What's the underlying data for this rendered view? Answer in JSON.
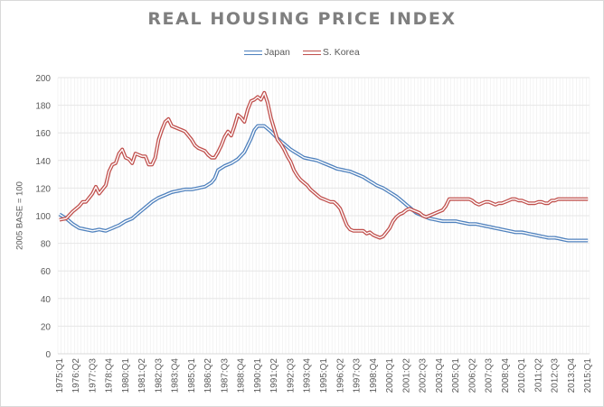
{
  "chart_data": {
    "type": "line",
    "title": "REAL HOUSING PRICE INDEX",
    "xlabel": "",
    "ylabel": "2005 BASE = 100",
    "ylim": [
      0,
      200
    ],
    "yticks": [
      0,
      20,
      40,
      60,
      80,
      100,
      120,
      140,
      160,
      180,
      200
    ],
    "grid": true,
    "legend": "top-center",
    "x_start": "1975:Q1",
    "x_end": "2015:Q1",
    "x_frequency": "quarterly",
    "xtick_labels": [
      "1975:Q1",
      "1976:Q2",
      "1977:Q3",
      "1978:Q4",
      "1980:Q1",
      "1981:Q2",
      "1982:Q3",
      "1983:Q4",
      "1985:Q1",
      "1986:Q2",
      "1987:Q3",
      "1988:Q4",
      "1990:Q1",
      "1991:Q2",
      "1992:Q3",
      "1993:Q4",
      "1995:Q1",
      "1996:Q2",
      "1997:Q3",
      "1998:Q4",
      "2000:Q1",
      "2001:Q2",
      "2002:Q3",
      "2003:Q4",
      "2005:Q1",
      "2006:Q2",
      "2007:Q3",
      "2008:Q4",
      "2010:Q1",
      "2011:Q2",
      "2012:Q3",
      "2013:Q4",
      "2015:Q1"
    ],
    "series": [
      {
        "name": "Japan",
        "color": "#4f81bd",
        "keypoints": [
          [
            0,
            101
          ],
          [
            2,
            98
          ],
          [
            4,
            94
          ],
          [
            6,
            91
          ],
          [
            8,
            90
          ],
          [
            10,
            89
          ],
          [
            12,
            90
          ],
          [
            14,
            89
          ],
          [
            16,
            91
          ],
          [
            18,
            93
          ],
          [
            20,
            96
          ],
          [
            22,
            98
          ],
          [
            24,
            102
          ],
          [
            26,
            106
          ],
          [
            28,
            110
          ],
          [
            30,
            113
          ],
          [
            32,
            115
          ],
          [
            34,
            117
          ],
          [
            36,
            118
          ],
          [
            38,
            119
          ],
          [
            40,
            119
          ],
          [
            42,
            120
          ],
          [
            44,
            121
          ],
          [
            46,
            124
          ],
          [
            47,
            127
          ],
          [
            48,
            133
          ],
          [
            50,
            136
          ],
          [
            52,
            138
          ],
          [
            54,
            141
          ],
          [
            56,
            146
          ],
          [
            58,
            156
          ],
          [
            59,
            162
          ],
          [
            60,
            165
          ],
          [
            62,
            165
          ],
          [
            64,
            161
          ],
          [
            66,
            156
          ],
          [
            68,
            152
          ],
          [
            70,
            148
          ],
          [
            72,
            145
          ],
          [
            74,
            142
          ],
          [
            76,
            141
          ],
          [
            78,
            140
          ],
          [
            80,
            138
          ],
          [
            82,
            136
          ],
          [
            84,
            134
          ],
          [
            86,
            133
          ],
          [
            88,
            132
          ],
          [
            90,
            130
          ],
          [
            92,
            128
          ],
          [
            94,
            125
          ],
          [
            96,
            122
          ],
          [
            98,
            120
          ],
          [
            100,
            117
          ],
          [
            102,
            114
          ],
          [
            104,
            110
          ],
          [
            106,
            106
          ],
          [
            108,
            102
          ],
          [
            110,
            100
          ],
          [
            112,
            98
          ],
          [
            114,
            97
          ],
          [
            116,
            96
          ],
          [
            118,
            96
          ],
          [
            120,
            96
          ],
          [
            122,
            95
          ],
          [
            124,
            94
          ],
          [
            126,
            94
          ],
          [
            128,
            93
          ],
          [
            130,
            92
          ],
          [
            132,
            91
          ],
          [
            134,
            90
          ],
          [
            136,
            89
          ],
          [
            138,
            88
          ],
          [
            140,
            88
          ],
          [
            142,
            87
          ],
          [
            144,
            86
          ],
          [
            146,
            85
          ],
          [
            148,
            84
          ],
          [
            150,
            84
          ],
          [
            152,
            83
          ],
          [
            154,
            82
          ],
          [
            156,
            82
          ],
          [
            158,
            82
          ],
          [
            160,
            82
          ]
        ]
      },
      {
        "name": "S. Korea",
        "color": "#c0504d",
        "keypoints": [
          [
            0,
            97
          ],
          [
            2,
            98
          ],
          [
            4,
            103
          ],
          [
            6,
            107
          ],
          [
            7,
            110
          ],
          [
            8,
            110
          ],
          [
            9,
            113
          ],
          [
            10,
            116
          ],
          [
            11,
            121
          ],
          [
            12,
            116
          ],
          [
            13,
            119
          ],
          [
            14,
            122
          ],
          [
            15,
            132
          ],
          [
            16,
            137
          ],
          [
            17,
            138
          ],
          [
            18,
            145
          ],
          [
            19,
            148
          ],
          [
            20,
            142
          ],
          [
            21,
            141
          ],
          [
            22,
            138
          ],
          [
            23,
            145
          ],
          [
            24,
            144
          ],
          [
            25,
            143
          ],
          [
            26,
            143
          ],
          [
            27,
            137
          ],
          [
            28,
            137
          ],
          [
            29,
            142
          ],
          [
            30,
            155
          ],
          [
            31,
            162
          ],
          [
            32,
            168
          ],
          [
            33,
            170
          ],
          [
            34,
            165
          ],
          [
            35,
            164
          ],
          [
            36,
            163
          ],
          [
            37,
            162
          ],
          [
            38,
            161
          ],
          [
            39,
            158
          ],
          [
            40,
            155
          ],
          [
            41,
            151
          ],
          [
            42,
            149
          ],
          [
            43,
            148
          ],
          [
            44,
            147
          ],
          [
            45,
            144
          ],
          [
            46,
            142
          ],
          [
            47,
            142
          ],
          [
            48,
            146
          ],
          [
            49,
            151
          ],
          [
            50,
            157
          ],
          [
            51,
            161
          ],
          [
            52,
            158
          ],
          [
            53,
            165
          ],
          [
            54,
            173
          ],
          [
            55,
            171
          ],
          [
            56,
            168
          ],
          [
            57,
            177
          ],
          [
            58,
            183
          ],
          [
            59,
            184
          ],
          [
            60,
            186
          ],
          [
            61,
            184
          ],
          [
            62,
            189
          ],
          [
            63,
            182
          ],
          [
            64,
            171
          ],
          [
            65,
            163
          ],
          [
            66,
            155
          ],
          [
            67,
            152
          ],
          [
            68,
            148
          ],
          [
            69,
            143
          ],
          [
            70,
            139
          ],
          [
            71,
            133
          ],
          [
            72,
            129
          ],
          [
            73,
            126
          ],
          [
            74,
            124
          ],
          [
            75,
            122
          ],
          [
            76,
            119
          ],
          [
            77,
            117
          ],
          [
            78,
            115
          ],
          [
            79,
            113
          ],
          [
            80,
            112
          ],
          [
            81,
            111
          ],
          [
            82,
            110
          ],
          [
            83,
            110
          ],
          [
            84,
            108
          ],
          [
            85,
            105
          ],
          [
            86,
            99
          ],
          [
            87,
            93
          ],
          [
            88,
            90
          ],
          [
            89,
            89
          ],
          [
            90,
            89
          ],
          [
            91,
            89
          ],
          [
            92,
            89
          ],
          [
            93,
            87
          ],
          [
            94,
            88
          ],
          [
            95,
            86
          ],
          [
            96,
            85
          ],
          [
            97,
            84
          ],
          [
            98,
            85
          ],
          [
            99,
            88
          ],
          [
            100,
            91
          ],
          [
            101,
            96
          ],
          [
            102,
            99
          ],
          [
            103,
            101
          ],
          [
            104,
            102
          ],
          [
            105,
            104
          ],
          [
            106,
            105
          ],
          [
            107,
            104
          ],
          [
            108,
            103
          ],
          [
            109,
            102
          ],
          [
            110,
            100
          ],
          [
            111,
            99
          ],
          [
            112,
            100
          ],
          [
            113,
            101
          ],
          [
            114,
            102
          ],
          [
            115,
            103
          ],
          [
            116,
            104
          ],
          [
            117,
            107
          ],
          [
            118,
            112
          ],
          [
            119,
            112
          ],
          [
            120,
            112
          ],
          [
            121,
            112
          ],
          [
            122,
            112
          ],
          [
            123,
            112
          ],
          [
            124,
            112
          ],
          [
            125,
            111
          ],
          [
            126,
            109
          ],
          [
            127,
            108
          ],
          [
            128,
            109
          ],
          [
            129,
            110
          ],
          [
            130,
            110
          ],
          [
            131,
            109
          ],
          [
            132,
            108
          ],
          [
            133,
            109
          ],
          [
            134,
            109
          ],
          [
            135,
            110
          ],
          [
            136,
            111
          ],
          [
            137,
            112
          ],
          [
            138,
            112
          ],
          [
            139,
            111
          ],
          [
            140,
            111
          ],
          [
            141,
            110
          ],
          [
            142,
            109
          ],
          [
            143,
            109
          ],
          [
            144,
            109
          ],
          [
            145,
            110
          ],
          [
            146,
            110
          ],
          [
            147,
            109
          ],
          [
            148,
            109
          ],
          [
            149,
            111
          ],
          [
            150,
            111
          ],
          [
            151,
            112
          ],
          [
            152,
            112
          ],
          [
            160,
            112
          ]
        ]
      }
    ]
  }
}
